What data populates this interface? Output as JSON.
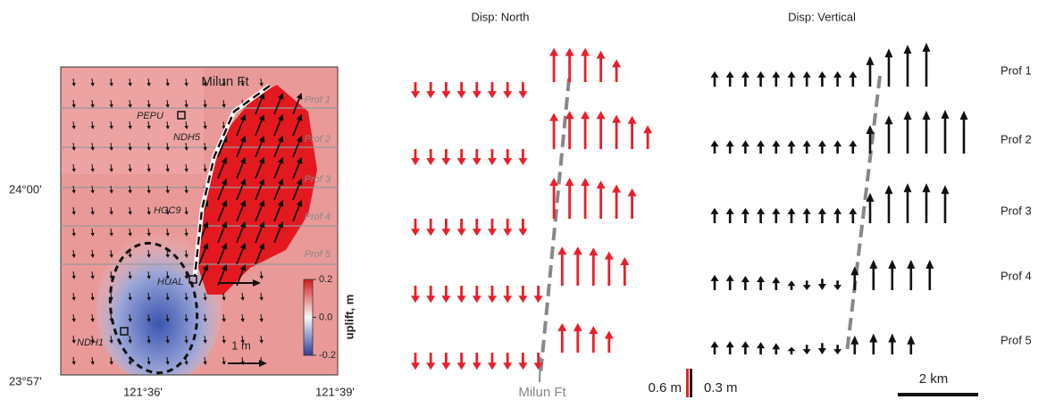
{
  "map": {
    "fault_label": "Milun Ft",
    "profile_labels": [
      "Prof 1",
      "Prof 2",
      "Prof 3",
      "Prof 4",
      "Prof 5"
    ],
    "stations": [
      "PEPU",
      "NDH5",
      "HGC9",
      "HUAL",
      "NDH1"
    ],
    "lat_labels": [
      "24°00'",
      "23°57'"
    ],
    "lon_labels": [
      "121°36'",
      "121°39'"
    ],
    "vector_scale": "1 m",
    "colorbar": {
      "label": "uplift, m",
      "range": [
        -0.2,
        0.2
      ],
      "ticks": [
        0.2,
        {
          "value": 0,
          "label": "0.0"
        },
        -0.2
      ]
    }
  },
  "panels": {
    "north": {
      "title": "Disp: North",
      "color": "#e8202a"
    },
    "vertical": {
      "title": "Disp: Vertical",
      "color": "#111111"
    }
  },
  "profiles": [
    {
      "label": "Prof 1",
      "north": [
        -0.34,
        -0.34,
        -0.34,
        -0.34,
        -0.34,
        -0.34,
        -0.34,
        -0.34,
        0.72,
        0.72,
        0.72,
        0.66,
        0.48
      ],
      "vertical": [
        0.16,
        0.16,
        0.16,
        0.16,
        0.16,
        0.16,
        0.16,
        0.16,
        0.16,
        0.16,
        0.32,
        0.4,
        0.44,
        0.46
      ]
    },
    {
      "label": "Prof 2",
      "north": [
        -0.34,
        -0.34,
        -0.34,
        -0.34,
        -0.34,
        -0.34,
        -0.34,
        -0.34,
        0.76,
        0.8,
        0.8,
        0.8,
        0.72,
        0.7,
        0.5
      ],
      "vertical": [
        0.14,
        0.14,
        0.14,
        0.14,
        0.14,
        0.14,
        0.14,
        0.14,
        0.14,
        0.14,
        0.3,
        0.4,
        0.45,
        0.45,
        0.46,
        0.45
      ]
    },
    {
      "label": "Prof 3",
      "north": [
        -0.36,
        -0.36,
        -0.36,
        -0.36,
        -0.36,
        -0.36,
        -0.36,
        -0.36,
        0.86,
        0.86,
        0.86,
        0.8,
        0.72,
        0.64
      ],
      "vertical": [
        0.16,
        0.16,
        0.16,
        0.16,
        0.16,
        0.16,
        0.16,
        0.16,
        0.16,
        0.16,
        0.32,
        0.4,
        0.42,
        0.42,
        0.4
      ]
    },
    {
      "label": "Prof 4",
      "north": [
        -0.36,
        -0.36,
        -0.36,
        -0.36,
        -0.36,
        -0.36,
        -0.36,
        -0.36,
        -0.36,
        0.82,
        0.82,
        0.8,
        0.72,
        0.6
      ],
      "vertical": [
        0.16,
        0.16,
        0.15,
        0.15,
        0.14,
        0.1,
        -0.1,
        -0.12,
        -0.1,
        0.25,
        0.32,
        0.32,
        0.32,
        0.32
      ]
    },
    {
      "label": "Prof 5",
      "north": [
        -0.36,
        -0.36,
        -0.36,
        -0.36,
        -0.36,
        -0.36,
        -0.36,
        -0.36,
        -0.36,
        0.62,
        0.62,
        0.56,
        0.46
      ],
      "vertical": [
        0.14,
        0.14,
        0.14,
        0.13,
        0.12,
        0.08,
        -0.1,
        -0.12,
        -0.1,
        0.2,
        0.22,
        0.22,
        0.2
      ]
    }
  ],
  "scale_bars": {
    "north": {
      "value": 0.6,
      "label": "0.6 m"
    },
    "vertical": {
      "value": 0.3,
      "label": "0.3 m"
    },
    "distance": "2 km"
  }
}
